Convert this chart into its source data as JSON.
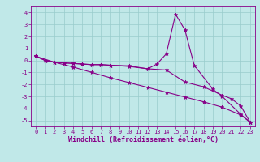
{
  "xlabel": "Windchill (Refroidissement éolien,°C)",
  "background_color": "#c0e8e8",
  "line_color": "#880088",
  "xlim": [
    -0.5,
    23.5
  ],
  "ylim": [
    -5.5,
    4.5
  ],
  "yticks": [
    -5,
    -4,
    -3,
    -2,
    -1,
    0,
    1,
    2,
    3,
    4
  ],
  "xticks": [
    0,
    1,
    2,
    3,
    4,
    5,
    6,
    7,
    8,
    9,
    10,
    11,
    12,
    13,
    14,
    15,
    16,
    17,
    18,
    19,
    20,
    21,
    22,
    23
  ],
  "line1_x": [
    0,
    1,
    2,
    3,
    4,
    5,
    6,
    7,
    8,
    10,
    12,
    13,
    14,
    15,
    16,
    17,
    19,
    20,
    22,
    23
  ],
  "line1_y": [
    0.35,
    0.0,
    -0.15,
    -0.2,
    -0.25,
    -0.3,
    -0.35,
    -0.35,
    -0.4,
    -0.45,
    -0.7,
    -0.3,
    0.55,
    3.85,
    2.55,
    -0.4,
    -2.4,
    -3.0,
    -4.5,
    -5.15
  ],
  "line2_x": [
    0,
    1,
    2,
    3,
    4,
    5,
    6,
    7,
    8,
    10,
    12,
    14,
    16,
    18,
    20,
    21,
    22,
    23
  ],
  "line2_y": [
    0.35,
    0.0,
    -0.15,
    -0.2,
    -0.25,
    -0.3,
    -0.35,
    -0.35,
    -0.4,
    -0.5,
    -0.7,
    -0.8,
    -1.8,
    -2.2,
    -2.9,
    -3.2,
    -3.8,
    -5.15
  ],
  "line3_x": [
    0,
    2,
    4,
    6,
    8,
    10,
    12,
    14,
    16,
    18,
    20,
    22,
    23
  ],
  "line3_y": [
    0.35,
    -0.15,
    -0.55,
    -1.0,
    -1.45,
    -1.85,
    -2.25,
    -2.65,
    -3.05,
    -3.45,
    -3.9,
    -4.55,
    -5.15
  ],
  "grid_color": "#99cccc",
  "tick_fontsize": 5.0,
  "xlabel_fontsize": 6.0,
  "marker": "*",
  "markersize": 3.5,
  "linewidth": 0.8
}
